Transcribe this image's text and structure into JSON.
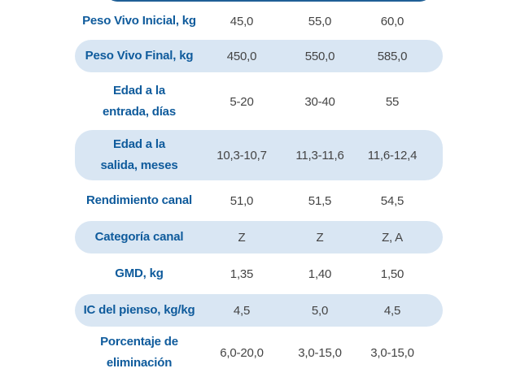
{
  "table": {
    "rows": [
      {
        "label": [
          "Peso Vivo Inicial, kg"
        ],
        "values": [
          "45,0",
          "55,0",
          "60,0"
        ],
        "shaded": false
      },
      {
        "label": [
          "Peso Vivo Final, kg"
        ],
        "values": [
          "450,0",
          "550,0",
          "585,0"
        ],
        "shaded": true
      },
      {
        "label": [
          "Edad a la",
          "entrada, días"
        ],
        "values": [
          "5-20",
          "30-40",
          "55"
        ],
        "shaded": false
      },
      {
        "label": [
          "Edad a la",
          "salida, meses"
        ],
        "values": [
          "10,3-10,7",
          "11,3-11,6",
          "11,6-12,4"
        ],
        "shaded": true
      },
      {
        "label": [
          "Rendimiento canal"
        ],
        "values": [
          "51,0",
          "51,5",
          "54,5"
        ],
        "shaded": false
      },
      {
        "label": [
          "Categoría canal"
        ],
        "values": [
          "Z",
          "Z",
          "Z, A"
        ],
        "shaded": true
      },
      {
        "label": [
          "GMD, kg"
        ],
        "values": [
          "1,35",
          "1,40",
          "1,50"
        ],
        "shaded": false
      },
      {
        "label": [
          "IC del pienso, kg/kg"
        ],
        "values": [
          "4,5",
          "5,0",
          "4,5"
        ],
        "shaded": true
      },
      {
        "label": [
          "Porcentaje de",
          "eliminación"
        ],
        "values": [
          "6,0-20,0",
          "3,0-15,0",
          "3,0-15,0"
        ],
        "shaded": false
      }
    ]
  },
  "colors": {
    "label_text": "#0f5b9c",
    "value_text": "#444444",
    "row_shade": "#d9e6f3",
    "header_band": "#1f5f96"
  }
}
